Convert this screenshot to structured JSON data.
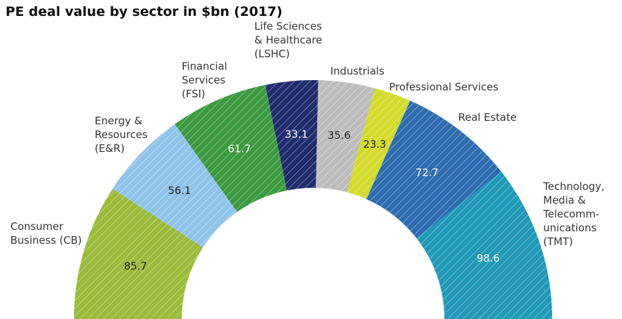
{
  "chart_data": {
    "type": "donut",
    "title": "PE deal value by sector in $bn (2017)",
    "categories": [
      "Consumer\nBusiness (CB)",
      "Energy &\nResources\n(E&R)",
      "Financial\nServices\n(FSI)",
      "Life Sciences\n& Healthcare\n(LSHC)",
      "Industrials",
      "Professional Services",
      "Real Estate",
      "Technology,\nMedia &\nTelecomm-\nunications\n(TMT)"
    ],
    "values": [
      85.7,
      56.1,
      61.7,
      33.1,
      35.6,
      23.3,
      72.7,
      98.6
    ],
    "colors": [
      "#9bbb3a",
      "#8fc3ea",
      "#3b9a3f",
      "#1f2d6e",
      "#bdbdbd",
      "#d3da2b",
      "#2e6cb0",
      "#1f99b7"
    ]
  }
}
